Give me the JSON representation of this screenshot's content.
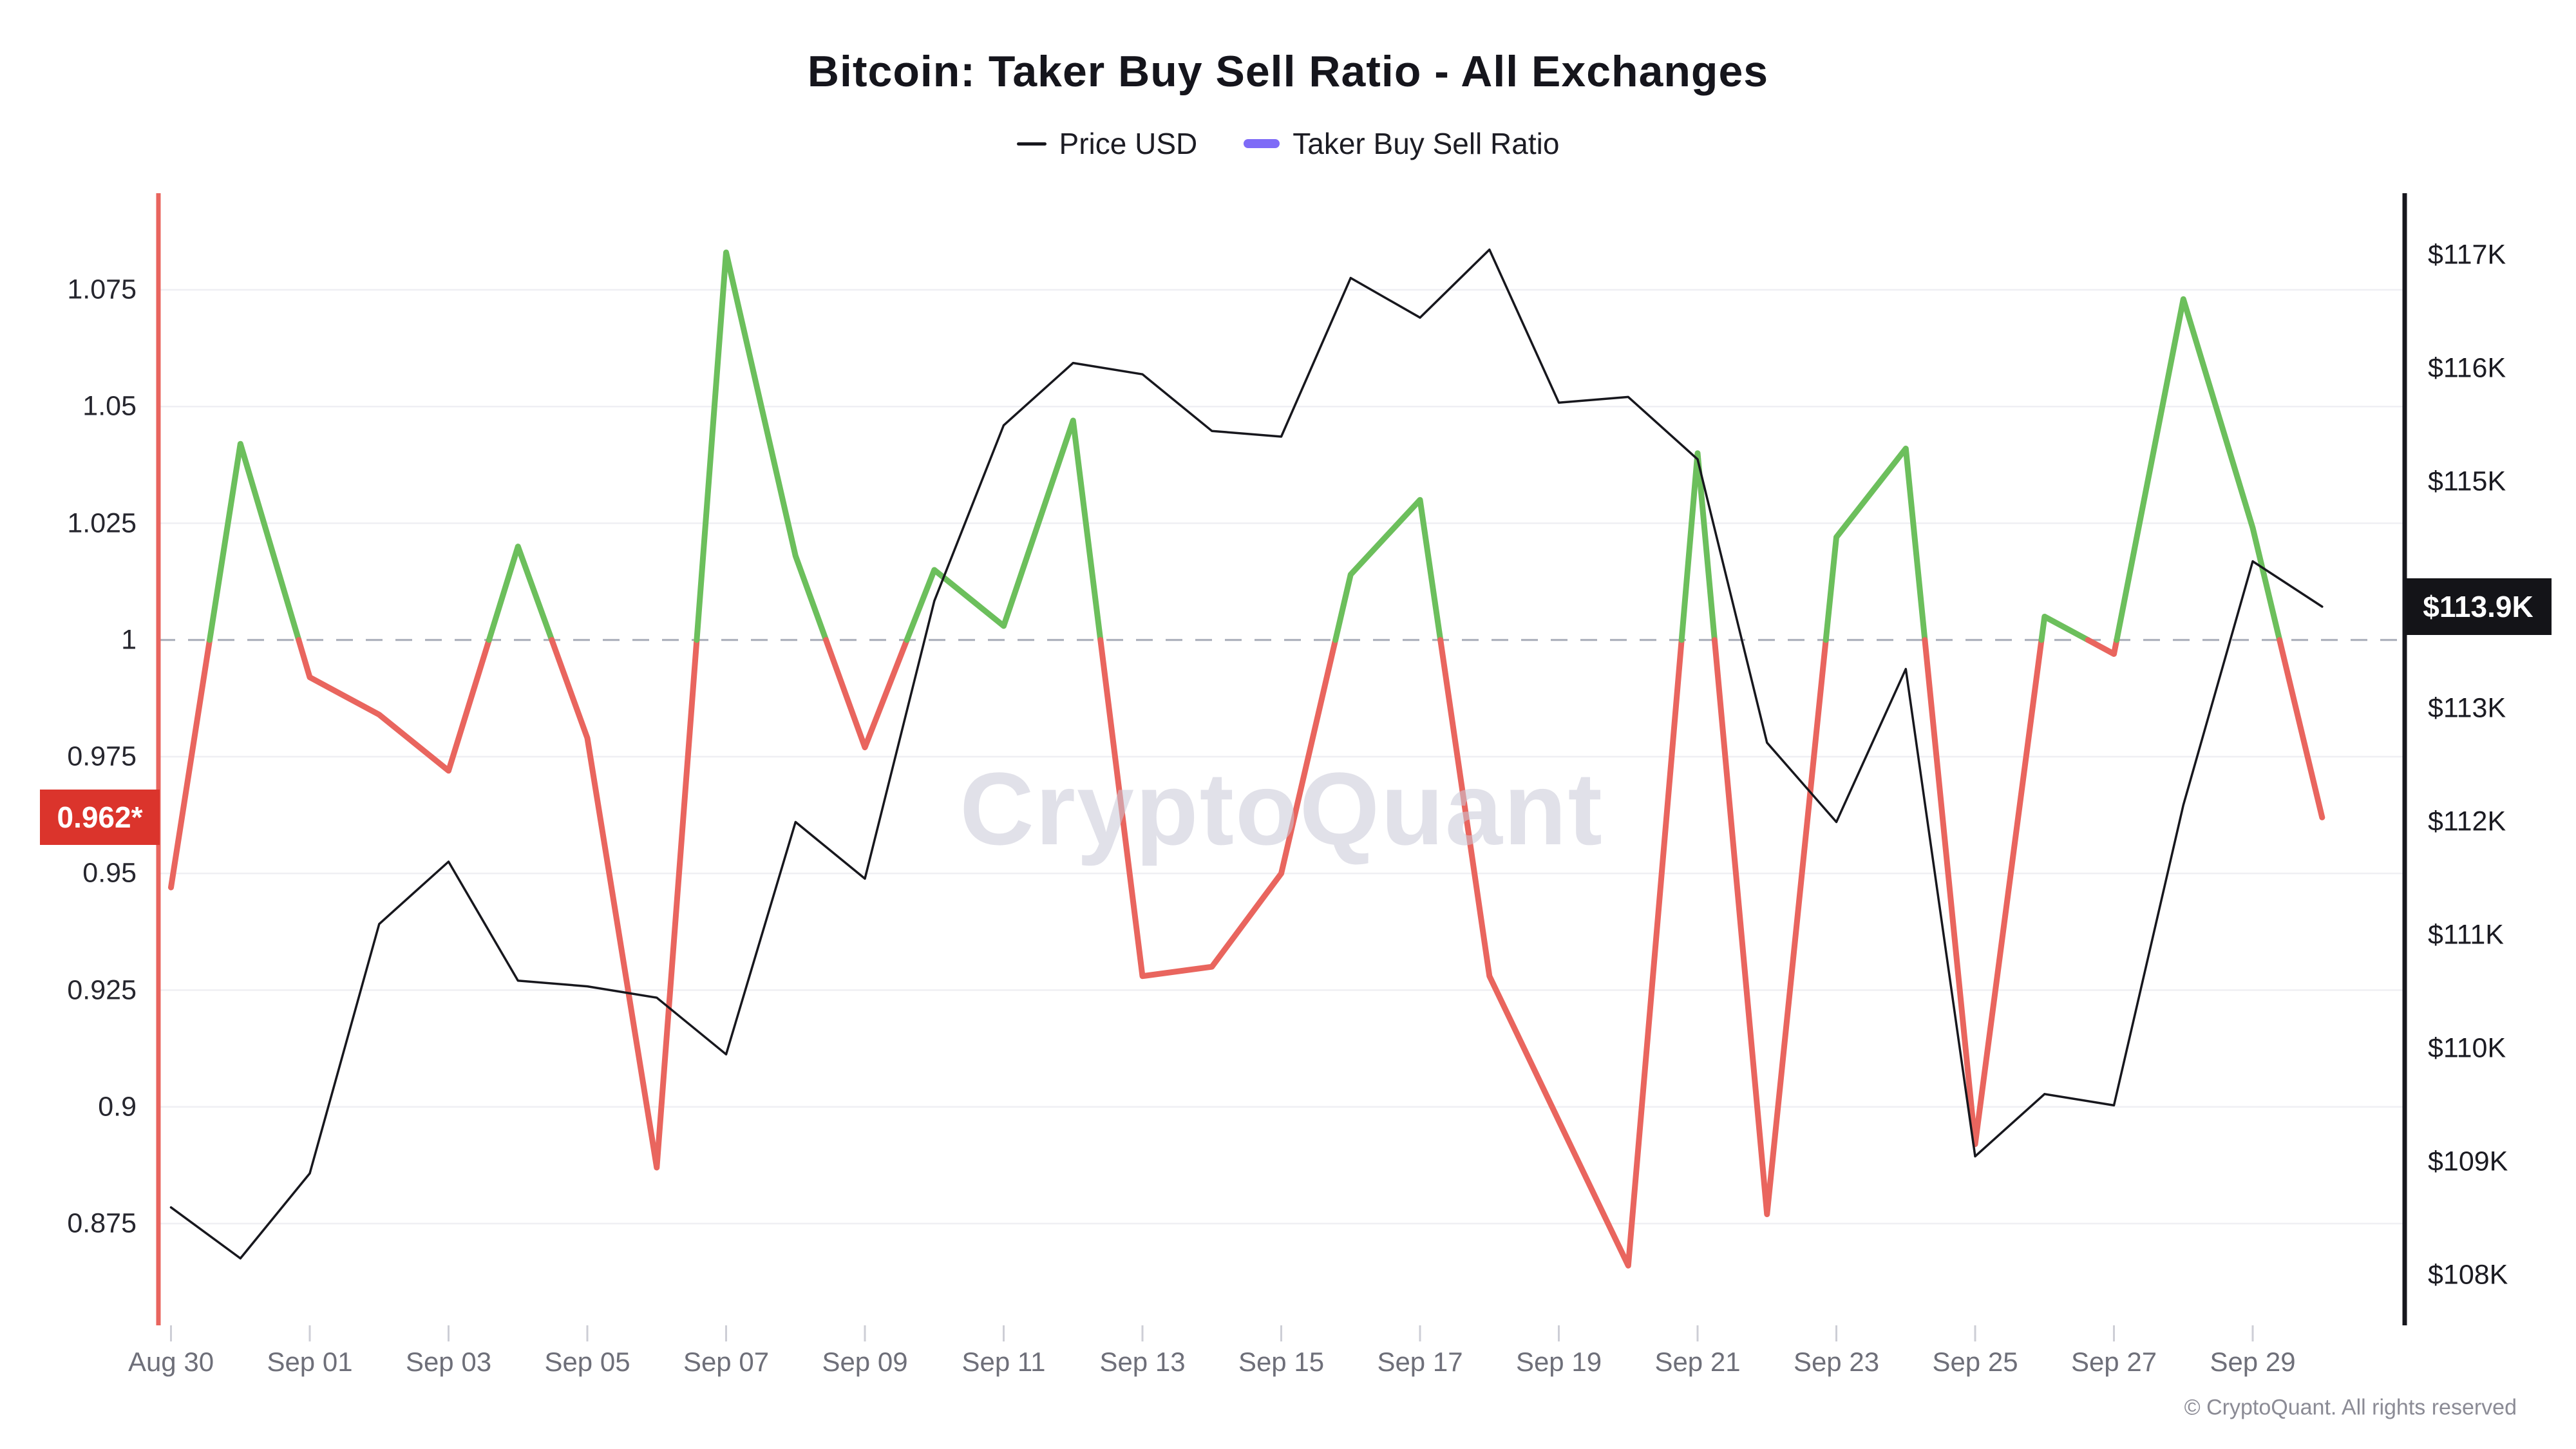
{
  "title": "Bitcoin: Taker Buy Sell Ratio - All Exchanges",
  "watermark": "CryptoQuant",
  "footer": "© CryptoQuant. All rights reserved",
  "legend": [
    {
      "label": "Price USD",
      "color": "#17171d",
      "style": "thin"
    },
    {
      "label": "Taker Buy Sell Ratio",
      "color": "#7e6bf7",
      "style": "thick"
    }
  ],
  "badges": {
    "ratio": {
      "text": "0.962*",
      "value": 0.962,
      "bg": "#db342c"
    },
    "price": {
      "text": "$113.9K",
      "value": 113.9,
      "bg": "#141418"
    }
  },
  "chart_data": {
    "type": "line",
    "title": "Bitcoin: Taker Buy Sell Ratio - All Exchanges",
    "x": [
      "Aug 30",
      "Aug 31",
      "Sep 01",
      "Sep 02",
      "Sep 03",
      "Sep 04",
      "Sep 05",
      "Sep 06",
      "Sep 07",
      "Sep 08",
      "Sep 09",
      "Sep 10",
      "Sep 11",
      "Sep 12",
      "Sep 13",
      "Sep 14",
      "Sep 15",
      "Sep 16",
      "Sep 17",
      "Sep 18",
      "Sep 19",
      "Sep 20",
      "Sep 21",
      "Sep 22",
      "Sep 23",
      "Sep 24",
      "Sep 25",
      "Sep 26",
      "Sep 27",
      "Sep 28",
      "Sep 29",
      "Sep 30"
    ],
    "series": [
      {
        "name": "Taker Buy Sell Ratio",
        "axis": "left",
        "threshold": 1.0,
        "color_above": "#6cbf5c",
        "color_below": "#e9655e",
        "line_width": 9,
        "values": [
          0.947,
          1.042,
          0.992,
          0.984,
          0.972,
          1.02,
          0.979,
          0.887,
          1.083,
          1.018,
          0.977,
          1.015,
          1.003,
          1.047,
          0.928,
          0.93,
          0.95,
          1.014,
          1.03,
          0.928,
          0.897,
          0.866,
          1.04,
          0.877,
          1.022,
          1.041,
          0.892,
          1.005,
          0.997,
          1.073,
          1.024,
          0.962
        ]
      },
      {
        "name": "Price USD",
        "axis": "right",
        "color": "#17171d",
        "line_width": 3.5,
        "values": [
          108.6,
          108.15,
          108.9,
          111.1,
          111.65,
          110.6,
          110.55,
          110.45,
          109.95,
          112.0,
          111.5,
          113.95,
          115.5,
          116.05,
          115.95,
          115.45,
          115.4,
          116.8,
          116.45,
          117.05,
          115.7,
          115.75,
          115.2,
          112.7,
          112.0,
          113.35,
          109.05,
          109.6,
          109.5,
          112.15,
          114.3,
          113.9
        ]
      }
    ],
    "left_axis": {
      "ticks": [
        1.075,
        1.05,
        1.025,
        1,
        0.975,
        0.95,
        0.925,
        0.9,
        0.875
      ],
      "labels": [
        "1.075",
        "1.05",
        "1.025",
        "1",
        "0.975",
        "0.95",
        "0.925",
        "0.9",
        "0.875"
      ],
      "range": [
        0.853,
        1.096
      ],
      "reference_line": 1.0,
      "axis_color": "#e9655e",
      "grid": true
    },
    "right_axis": {
      "ticks": [
        117,
        116,
        115,
        113,
        112,
        111,
        110,
        109,
        108
      ],
      "labels": [
        "$117K",
        "$116K",
        "$115K",
        "$113K",
        "$112K",
        "$111K",
        "$110K",
        "$109K",
        "$108K"
      ],
      "range": [
        107.55,
        117.55
      ],
      "axis_color": "#17171d",
      "grid": false
    },
    "x_axis": {
      "tick_indices": [
        0,
        2,
        4,
        6,
        8,
        10,
        12,
        14,
        16,
        18,
        20,
        22,
        24,
        26,
        28,
        30
      ],
      "labels": [
        "Aug 30",
        "Sep 01",
        "Sep 03",
        "Sep 05",
        "Sep 07",
        "Sep 09",
        "Sep 11",
        "Sep 13",
        "Sep 15",
        "Sep 17",
        "Sep 19",
        "Sep 21",
        "Sep 23",
        "Sep 25",
        "Sep 27",
        "Sep 29"
      ]
    },
    "layout_hints": {
      "grid_color": "#efeff3",
      "dashed_ref_color": "#a8acb8",
      "tick_color": "#cdced6",
      "legend_position": "top-center"
    }
  }
}
